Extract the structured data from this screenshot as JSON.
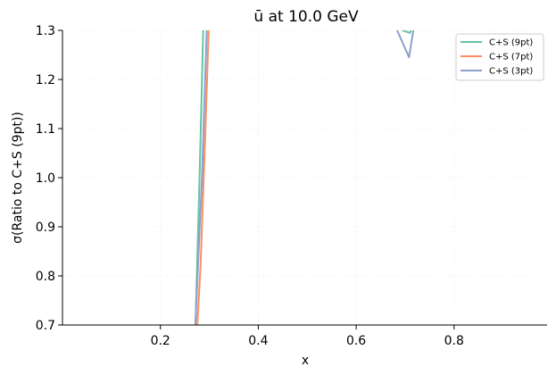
{
  "chart_data": {
    "type": "line",
    "title": "ū at 10.0 GeV",
    "xlabel": "x",
    "ylabel": "σ(Ratio to C+S (9pt))",
    "xlim": [
      0.0,
      0.99
    ],
    "ylim": [
      0.7,
      1.3
    ],
    "xticks": [
      0.2,
      0.4,
      0.6,
      0.8
    ],
    "yticks": [
      0.7,
      0.8,
      0.9,
      1.0,
      1.1,
      1.2,
      1.3
    ],
    "grid": true,
    "legend_position": "top-right",
    "series": [
      {
        "name": "C+S (9pt)",
        "color": "#66c2a5",
        "points": [
          [
            0.269,
            0.6
          ],
          [
            0.28,
            1.0
          ],
          [
            0.29,
            1.4
          ]
        ],
        "extra_points": [
          [
            0.68,
            1.32
          ],
          [
            0.695,
            1.3
          ],
          [
            0.71,
            1.295
          ],
          [
            0.72,
            1.32
          ]
        ]
      },
      {
        "name": "C+S (7pt)",
        "color": "#fc8d62",
        "points": [
          [
            0.27,
            0.6
          ],
          [
            0.282,
            0.82
          ],
          [
            0.292,
            1.1
          ],
          [
            0.302,
            1.4
          ]
        ]
      },
      {
        "name": "C+S (3pt)",
        "color": "#8da0cb",
        "points": [
          [
            0.267,
            0.6
          ],
          [
            0.285,
            1.0
          ],
          [
            0.298,
            1.4
          ]
        ],
        "extra_points": [
          [
            0.675,
            1.32
          ],
          [
            0.708,
            1.245
          ],
          [
            0.72,
            1.32
          ]
        ]
      }
    ]
  }
}
